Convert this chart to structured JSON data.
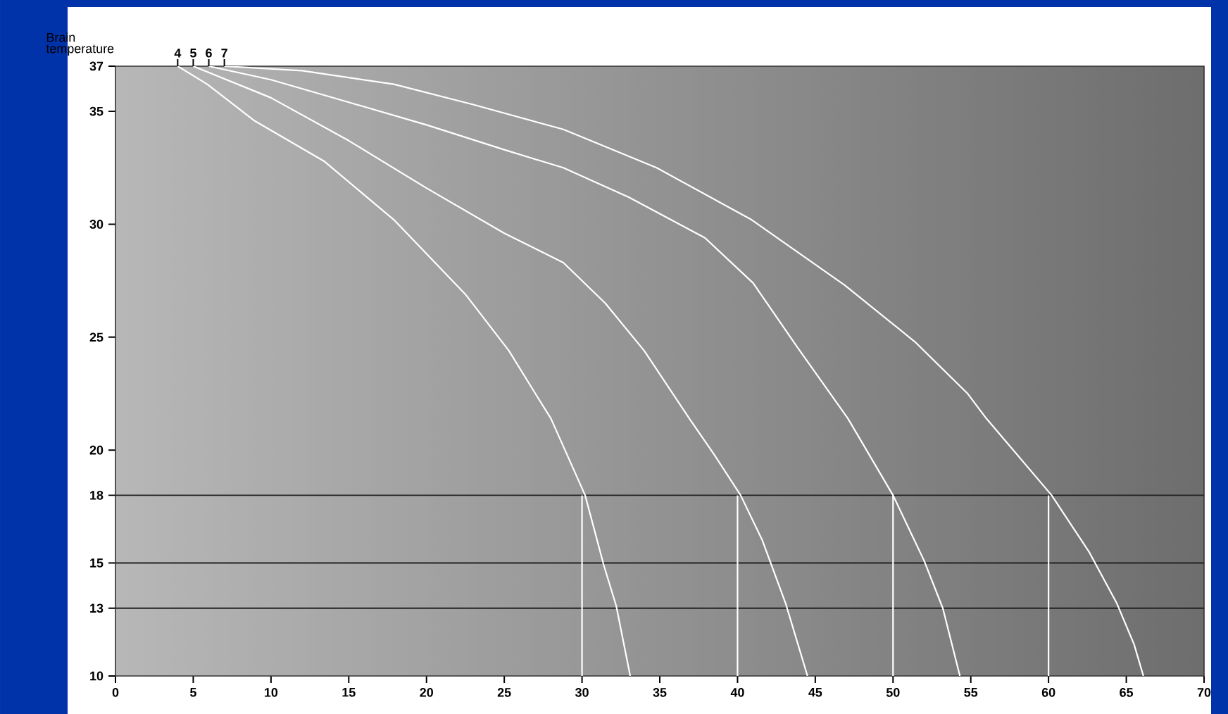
{
  "chart_data": {
    "type": "line",
    "ylabel": "Brain temperature",
    "xlim": [
      0,
      70
    ],
    "xticks": [
      0,
      5,
      10,
      15,
      20,
      25,
      30,
      35,
      40,
      45,
      50,
      55,
      60,
      65,
      70
    ],
    "x2lim": [
      0,
      70
    ],
    "x2ticks": [
      4,
      5,
      6,
      7
    ],
    "ylim": [
      10,
      37
    ],
    "yticks": [
      10,
      13,
      15,
      18,
      20,
      25,
      30,
      35,
      37
    ],
    "grid": false,
    "marker": "none",
    "line_style": "solid",
    "series": [
      {
        "color": "#ffffff",
        "x": [
          4,
          5.9,
          8.9,
          13.4,
          17.9,
          22.5,
          25.3,
          27,
          28,
          30.2,
          31.4,
          32.2,
          33.1
        ],
        "values": [
          37,
          36.2,
          34.6,
          32.8,
          30.2,
          26.9,
          24.4,
          22.5,
          21.4,
          18,
          14.9,
          13.1,
          10
        ]
      },
      {
        "color": "#ffffff",
        "x": [
          5,
          10,
          15,
          20,
          25,
          28.8,
          31.5,
          34,
          36.9,
          38.5,
          40.2,
          41.6,
          43.1,
          44.5
        ],
        "values": [
          37,
          35.6,
          33.7,
          31.6,
          29.6,
          28.3,
          26.5,
          24.4,
          21.4,
          19.8,
          18,
          16,
          13.2,
          10
        ]
      },
      {
        "color": "#ffffff",
        "x": [
          6,
          10,
          15,
          20,
          25,
          28.8,
          33,
          37.9,
          41,
          43.8,
          47.1,
          50,
          52,
          53.2,
          54.3
        ],
        "values": [
          37,
          36.4,
          35.4,
          34.4,
          33.3,
          32.5,
          31.2,
          29.4,
          27.4,
          24.6,
          21.4,
          18,
          15.1,
          13,
          10
        ]
      },
      {
        "color": "#ffffff",
        "x": [
          7,
          12,
          17.9,
          23,
          28.8,
          34.8,
          40.9,
          46.9,
          51.4,
          54.8,
          56,
          60.2,
          62.6,
          64.4,
          65.5,
          66.1
        ],
        "values": [
          37,
          36.8,
          36.2,
          35.3,
          34.2,
          32.5,
          30.2,
          27.3,
          24.8,
          22.5,
          21.4,
          18,
          15.5,
          13.2,
          11.4,
          10
        ]
      },
      {
        "color": "#ffffff",
        "x": [
          30,
          30
        ],
        "values": [
          10,
          18
        ]
      },
      {
        "color": "#ffffff",
        "x": [
          40,
          40
        ],
        "values": [
          10,
          18
        ]
      },
      {
        "color": "#ffffff",
        "x": [
          50,
          50
        ],
        "values": [
          10,
          18
        ]
      },
      {
        "color": "#ffffff",
        "x": [
          60,
          60
        ],
        "values": [
          10,
          18
        ]
      }
    ],
    "ref_lines": [
      {
        "axis": "y",
        "value": 18,
        "color": "#222222"
      },
      {
        "axis": "y",
        "value": 15,
        "color": "#222222"
      },
      {
        "axis": "y",
        "value": 13,
        "color": "#222222"
      }
    ]
  }
}
